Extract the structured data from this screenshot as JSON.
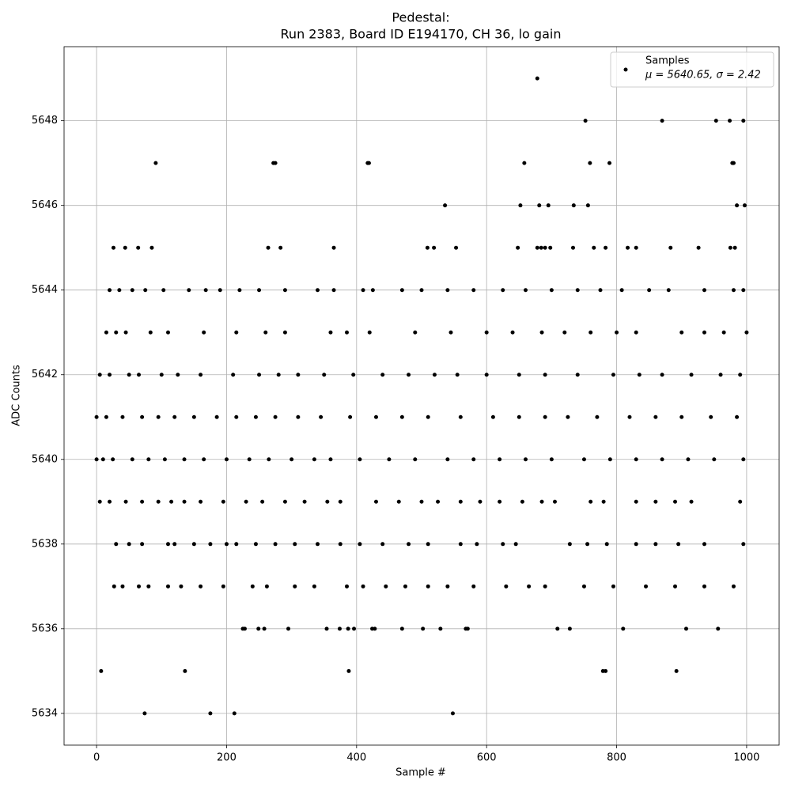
{
  "chart_data": {
    "type": "scatter",
    "title": "Pedestal:",
    "subtitle": "Run 2383, Board ID E194170, CH 36, lo gain",
    "x_label": "Sample #",
    "y_label": "ADC Counts",
    "xlim": [
      -50,
      1050
    ],
    "ylim": [
      5633.25,
      5649.75
    ],
    "xticks": [
      0,
      200,
      400,
      600,
      800,
      1000
    ],
    "yticks": [
      5634,
      5636,
      5638,
      5640,
      5642,
      5644,
      5646,
      5648
    ],
    "grid": true,
    "legend": "upper right",
    "legend_stats": "μ = 5640.65, σ = 2.42",
    "x": [
      678,
      752,
      870,
      953,
      974,
      995,
      91,
      272,
      275,
      417,
      419,
      658,
      759,
      789,
      978,
      980,
      536,
      652,
      681,
      695,
      734,
      756,
      985,
      997,
      26,
      44,
      64,
      85,
      264,
      283,
      365,
      509,
      519,
      553,
      648,
      678,
      684,
      690,
      698,
      733,
      765,
      783,
      817,
      830,
      883,
      926,
      982,
      975,
      20,
      35,
      55,
      75,
      103,
      142,
      168,
      190,
      220,
      250,
      290,
      340,
      365,
      410,
      425,
      470,
      500,
      540,
      580,
      625,
      660,
      700,
      740,
      775,
      808,
      850,
      880,
      935,
      980,
      995,
      15,
      30,
      45,
      83,
      110,
      165,
      215,
      260,
      290,
      360,
      385,
      420,
      490,
      545,
      600,
      640,
      685,
      720,
      760,
      800,
      830,
      900,
      935,
      965,
      1000,
      5,
      20,
      50,
      65,
      100,
      125,
      160,
      210,
      250,
      280,
      310,
      350,
      395,
      440,
      480,
      520,
      555,
      600,
      650,
      690,
      740,
      795,
      835,
      870,
      915,
      960,
      990,
      0,
      15,
      40,
      70,
      95,
      120,
      150,
      185,
      215,
      245,
      275,
      310,
      345,
      390,
      430,
      470,
      510,
      560,
      610,
      650,
      690,
      725,
      770,
      820,
      860,
      900,
      945,
      985,
      0,
      10,
      25,
      55,
      80,
      105,
      135,
      165,
      200,
      235,
      265,
      300,
      335,
      360,
      405,
      450,
      490,
      540,
      580,
      620,
      660,
      700,
      750,
      790,
      830,
      870,
      910,
      950,
      995,
      5,
      20,
      45,
      70,
      95,
      115,
      135,
      160,
      195,
      230,
      255,
      290,
      320,
      355,
      375,
      430,
      465,
      500,
      525,
      560,
      590,
      620,
      655,
      685,
      705,
      760,
      780,
      830,
      860,
      890,
      915,
      990,
      30,
      50,
      70,
      110,
      120,
      150,
      175,
      200,
      215,
      245,
      275,
      305,
      340,
      375,
      405,
      440,
      480,
      510,
      560,
      585,
      625,
      645,
      728,
      755,
      785,
      830,
      860,
      895,
      935,
      995,
      27,
      40,
      65,
      80,
      110,
      130,
      160,
      195,
      240,
      262,
      305,
      335,
      385,
      410,
      445,
      475,
      510,
      540,
      580,
      630,
      665,
      690,
      750,
      795,
      845,
      890,
      935,
      980,
      225,
      228,
      249,
      258,
      295,
      354,
      374,
      387,
      396,
      424,
      428,
      470,
      502,
      529,
      568,
      571,
      709,
      728,
      810,
      907,
      956,
      7,
      136,
      388,
      779,
      783,
      892,
      74,
      175,
      212,
      548
    ],
    "series": [
      {
        "name": "Samples",
        "color": "#000000",
        "values": [
          5649,
          5648,
          5648,
          5648,
          5648,
          5648,
          5647,
          5647,
          5647,
          5647,
          5647,
          5647,
          5647,
          5647,
          5647,
          5647,
          5646,
          5646,
          5646,
          5646,
          5646,
          5646,
          5646,
          5646,
          5645,
          5645,
          5645,
          5645,
          5645,
          5645,
          5645,
          5645,
          5645,
          5645,
          5645,
          5645,
          5645,
          5645,
          5645,
          5645,
          5645,
          5645,
          5645,
          5645,
          5645,
          5645,
          5645,
          5645,
          5644,
          5644,
          5644,
          5644,
          5644,
          5644,
          5644,
          5644,
          5644,
          5644,
          5644,
          5644,
          5644,
          5644,
          5644,
          5644,
          5644,
          5644,
          5644,
          5644,
          5644,
          5644,
          5644,
          5644,
          5644,
          5644,
          5644,
          5644,
          5644,
          5644,
          5643,
          5643,
          5643,
          5643,
          5643,
          5643,
          5643,
          5643,
          5643,
          5643,
          5643,
          5643,
          5643,
          5643,
          5643,
          5643,
          5643,
          5643,
          5643,
          5643,
          5643,
          5643,
          5643,
          5643,
          5643,
          5642,
          5642,
          5642,
          5642,
          5642,
          5642,
          5642,
          5642,
          5642,
          5642,
          5642,
          5642,
          5642,
          5642,
          5642,
          5642,
          5642,
          5642,
          5642,
          5642,
          5642,
          5642,
          5642,
          5642,
          5642,
          5642,
          5642,
          5641,
          5641,
          5641,
          5641,
          5641,
          5641,
          5641,
          5641,
          5641,
          5641,
          5641,
          5641,
          5641,
          5641,
          5641,
          5641,
          5641,
          5641,
          5641,
          5641,
          5641,
          5641,
          5641,
          5641,
          5641,
          5641,
          5641,
          5641,
          5640,
          5640,
          5640,
          5640,
          5640,
          5640,
          5640,
          5640,
          5640,
          5640,
          5640,
          5640,
          5640,
          5640,
          5640,
          5640,
          5640,
          5640,
          5640,
          5640,
          5640,
          5640,
          5640,
          5640,
          5640,
          5640,
          5640,
          5640,
          5640,
          5639,
          5639,
          5639,
          5639,
          5639,
          5639,
          5639,
          5639,
          5639,
          5639,
          5639,
          5639,
          5639,
          5639,
          5639,
          5639,
          5639,
          5639,
          5639,
          5639,
          5639,
          5639,
          5639,
          5639,
          5639,
          5639,
          5639,
          5639,
          5639,
          5639,
          5639,
          5639,
          5638,
          5638,
          5638,
          5638,
          5638,
          5638,
          5638,
          5638,
          5638,
          5638,
          5638,
          5638,
          5638,
          5638,
          5638,
          5638,
          5638,
          5638,
          5638,
          5638,
          5638,
          5638,
          5638,
          5638,
          5638,
          5638,
          5638,
          5638,
          5638,
          5638,
          5637,
          5637,
          5637,
          5637,
          5637,
          5637,
          5637,
          5637,
          5637,
          5637,
          5637,
          5637,
          5637,
          5637,
          5637,
          5637,
          5637,
          5637,
          5637,
          5637,
          5637,
          5637,
          5637,
          5637,
          5637,
          5637,
          5637,
          5637,
          5636,
          5636,
          5636,
          5636,
          5636,
          5636,
          5636,
          5636,
          5636,
          5636,
          5636,
          5636,
          5636,
          5636,
          5636,
          5636,
          5636,
          5636,
          5636,
          5636,
          5636,
          5635,
          5635,
          5635,
          5635,
          5635,
          5635,
          5634,
          5634,
          5634,
          5634
        ]
      }
    ]
  }
}
